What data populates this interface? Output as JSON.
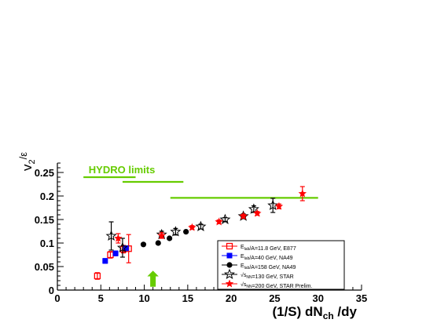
{
  "chart_data": {
    "type": "scatter",
    "xlabel_main": "(1/S) dN",
    "xlabel_sub": "ch",
    "xlabel_tail": " /dy",
    "ylabel_main": "v",
    "ylabel_sub": "2",
    "ylabel_denom": "ε",
    "xlim": [
      0,
      35
    ],
    "ylim": [
      0,
      0.27
    ],
    "x_ticks": [
      "0",
      "5",
      "10",
      "15",
      "20",
      "25",
      "30",
      "35"
    ],
    "y_ticks": [
      "0",
      "0.05",
      "0.1",
      "0.15",
      "0.2",
      "0.25"
    ],
    "annotation": "HYDRO  limits",
    "annotation_color": "#66cc00",
    "hydro_lines": [
      {
        "x": [
          3,
          9
        ],
        "y": 0.24
      },
      {
        "x": [
          7.5,
          14.5
        ],
        "y": 0.23
      },
      {
        "x": [
          13,
          30
        ],
        "y": 0.196
      }
    ],
    "arrow": {
      "x": 11,
      "y_bottom": 0.008,
      "y_top": 0.04,
      "color": "#66cc00"
    },
    "series": [
      {
        "label_parts": [
          [
            "E",
            "lab"
          ],
          [
            "/A=11.8 GeV, E877",
            ""
          ]
        ],
        "color": "#ff0000",
        "marker": "open-square",
        "points": [
          {
            "x": 4.6,
            "y": 0.03,
            "err": 0.007
          },
          {
            "x": 6.1,
            "y": 0.075,
            "err": 0.007
          },
          {
            "x": 7.6,
            "y": 0.087,
            "err": 0.008
          },
          {
            "x": 8.2,
            "y": 0.088,
            "err": 0.03
          }
        ]
      },
      {
        "label_parts": [
          [
            "E",
            "lab"
          ],
          [
            "/A=40 GeV, NA49",
            ""
          ]
        ],
        "color": "#0000ff",
        "marker": "filled-square",
        "points": [
          {
            "x": 5.5,
            "y": 0.062,
            "err": 0.005
          },
          {
            "x": 6.7,
            "y": 0.078,
            "err": 0.005
          },
          {
            "x": 7.9,
            "y": 0.089,
            "err": 0.005
          }
        ]
      },
      {
        "label_parts": [
          [
            "E",
            "lab"
          ],
          [
            "/A=158 GeV, NA49",
            ""
          ]
        ],
        "color": "#000000",
        "marker": "filled-circle",
        "points": [
          {
            "x": 9.9,
            "y": 0.097,
            "err": 0
          },
          {
            "x": 12.9,
            "y": 0.11,
            "err": 0
          },
          {
            "x": 11.6,
            "y": 0.1,
            "err": 0
          },
          {
            "x": 14.8,
            "y": 0.124,
            "err": 0
          }
        ]
      },
      {
        "label_parts": [
          [
            "√s",
            "NN"
          ],
          [
            "=130 GeV, STAR",
            ""
          ]
        ],
        "color": "#000000",
        "marker": "open-star",
        "points": [
          {
            "x": 6.2,
            "y": 0.115,
            "err": 0.03
          },
          {
            "x": 7.5,
            "y": 0.09,
            "err": 0.02
          },
          {
            "x": 12.0,
            "y": 0.118,
            "err": 0.007
          },
          {
            "x": 13.6,
            "y": 0.124,
            "err": 0.007
          },
          {
            "x": 16.5,
            "y": 0.135,
            "err": 0.005
          },
          {
            "x": 19.3,
            "y": 0.15,
            "err": 0.004
          },
          {
            "x": 21.4,
            "y": 0.157,
            "err": 0.005
          },
          {
            "x": 22.6,
            "y": 0.172,
            "err": 0.007
          },
          {
            "x": 24.8,
            "y": 0.18,
            "err": 0.015
          }
        ]
      },
      {
        "label_parts": [
          [
            "√s",
            "NN"
          ],
          [
            "=200 GeV, STAR Prelim.",
            ""
          ]
        ],
        "color": "#ff0000",
        "marker": "filled-star",
        "points": [
          {
            "x": 7.0,
            "y": 0.11,
            "err": 0.01
          },
          {
            "x": 12.0,
            "y": 0.116,
            "err": 0.006
          },
          {
            "x": 15.5,
            "y": 0.133,
            "err": 0.004
          },
          {
            "x": 18.6,
            "y": 0.145,
            "err": 0.004
          },
          {
            "x": 21.4,
            "y": 0.157,
            "err": 0.004
          },
          {
            "x": 23.0,
            "y": 0.163,
            "err": 0.004
          },
          {
            "x": 25.5,
            "y": 0.178,
            "err": 0.005
          },
          {
            "x": 28.2,
            "y": 0.205,
            "err": 0.015
          }
        ]
      }
    ]
  }
}
